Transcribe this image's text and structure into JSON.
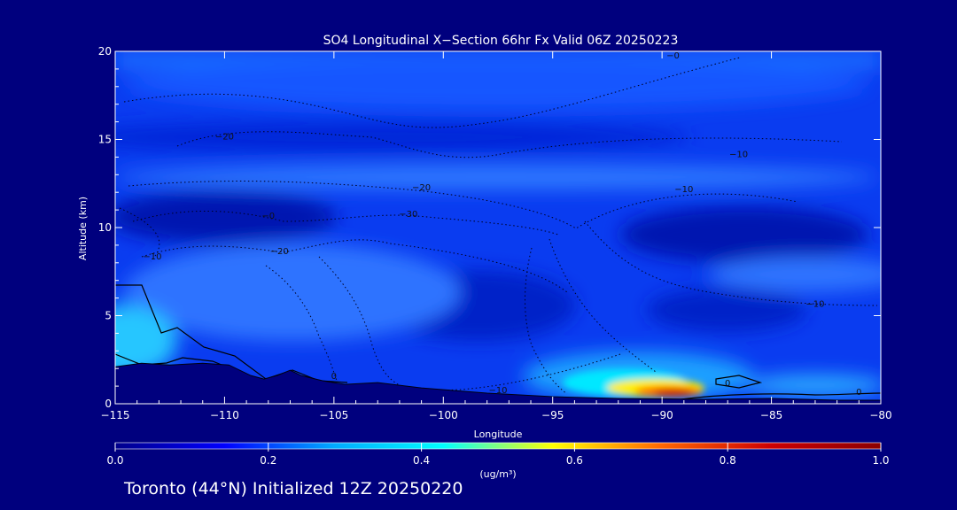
{
  "chart_data": {
    "type": "heatmap",
    "title": "SO4 Longitudinal X−Section 66hr  Fx Valid 06Z 20250223",
    "xlabel": "Longitude",
    "ylabel": "Altitude (km)",
    "xlim": [
      -115,
      -80
    ],
    "ylim": [
      0,
      20
    ],
    "x_ticks": [
      "−115",
      "−110",
      "−105",
      "−100",
      "−95",
      "−90",
      "−85",
      "−80"
    ],
    "x_tick_values": [
      -115,
      -110,
      -105,
      -100,
      -95,
      -90,
      -85,
      -80
    ],
    "y_ticks": [
      "0",
      "5",
      "10",
      "15",
      "20"
    ],
    "y_tick_values": [
      0,
      5,
      10,
      15,
      20
    ],
    "colorbar": {
      "min": 0.0,
      "max": 1.0,
      "tick_labels": [
        "0.0",
        "0.2",
        "0.4",
        "0.6",
        "0.8",
        "1.0"
      ],
      "tick_values": [
        0.0,
        0.2,
        0.4,
        0.6,
        0.8,
        1.0
      ],
      "units": "(ug/m³)",
      "colors": [
        "#00008b",
        "#0000ff",
        "#00aaff",
        "#00ffff",
        "#ffff00",
        "#ff6600",
        "#cc0000",
        "#8b0000"
      ]
    },
    "concentration_regions": [
      {
        "feature": "surface high",
        "lon": -90.0,
        "alt_km": 0.5,
        "value": 0.85
      },
      {
        "feature": "surface plume",
        "lon": -92.0,
        "alt_km": 0.9,
        "value": 0.6
      },
      {
        "feature": "western low-level max",
        "lon": -115.0,
        "alt_km": 3.5,
        "value": 0.45
      },
      {
        "feature": "east low band",
        "lon": -83.0,
        "alt_km": 0.6,
        "value": 0.35
      },
      {
        "feature": "mid troposphere",
        "lon": -100.0,
        "alt_km": 6.5,
        "value": 0.25
      },
      {
        "feature": "upper band",
        "lon": -97.5,
        "alt_km": 12.5,
        "value": 0.2
      },
      {
        "feature": "stratosphere",
        "lon": -97.5,
        "alt_km": 18.0,
        "value": 0.15
      },
      {
        "feature": "western minimum",
        "lon": -110.0,
        "alt_km": 10.5,
        "value": 0.1
      },
      {
        "feature": "eastern minimum",
        "lon": -86.0,
        "alt_km": 9.5,
        "value": 0.1
      },
      {
        "feature": "central minimum",
        "lon": -98.0,
        "alt_km": 6.0,
        "value": 0.12
      }
    ],
    "contour_labels": [
      {
        "text": "−20",
        "lon": -110.0,
        "alt_km": 15.0
      },
      {
        "text": "−0",
        "lon": -89.5,
        "alt_km": 19.6
      },
      {
        "text": "−10",
        "lon": -86.5,
        "alt_km": 14.0
      },
      {
        "text": "−20",
        "lon": -101.0,
        "alt_km": 12.1
      },
      {
        "text": "−10",
        "lon": -89.0,
        "alt_km": 12.0
      },
      {
        "text": "−30",
        "lon": -101.6,
        "alt_km": 10.6
      },
      {
        "text": "−0",
        "lon": -108.0,
        "alt_km": 10.5
      },
      {
        "text": "−20",
        "lon": -107.5,
        "alt_km": 8.5
      },
      {
        "text": "−10",
        "lon": -113.3,
        "alt_km": 8.2
      },
      {
        "text": "−10",
        "lon": -83.0,
        "alt_km": 5.5
      },
      {
        "text": "0",
        "lon": -105.0,
        "alt_km": 1.4
      },
      {
        "text": "−10",
        "lon": -97.5,
        "alt_km": 0.6
      },
      {
        "text": "0",
        "lon": -87.0,
        "alt_km": 1.0
      },
      {
        "text": "0",
        "lon": -81.0,
        "alt_km": 0.5
      }
    ],
    "terrain_km": [
      [
        -115,
        2.1
      ],
      [
        -113.8,
        2.3
      ],
      [
        -112.5,
        2.2
      ],
      [
        -111,
        2.3
      ],
      [
        -109.8,
        2.2
      ],
      [
        -108.8,
        1.6
      ],
      [
        -108.2,
        1.4
      ],
      [
        -107.6,
        1.6
      ],
      [
        -107,
        1.9
      ],
      [
        -106.5,
        1.6
      ],
      [
        -105.5,
        1.3
      ],
      [
        -104.5,
        1.1
      ],
      [
        -103,
        1.2
      ],
      [
        -101,
        0.9
      ],
      [
        -98,
        0.6
      ],
      [
        -95,
        0.4
      ],
      [
        -92,
        0.3
      ],
      [
        -88,
        0.25
      ],
      [
        -85,
        0.3
      ],
      [
        -82,
        0.2
      ],
      [
        -80,
        0.2
      ]
    ]
  },
  "footer": {
    "text": "Toronto (44°N) Initialized 12Z 20250220"
  }
}
